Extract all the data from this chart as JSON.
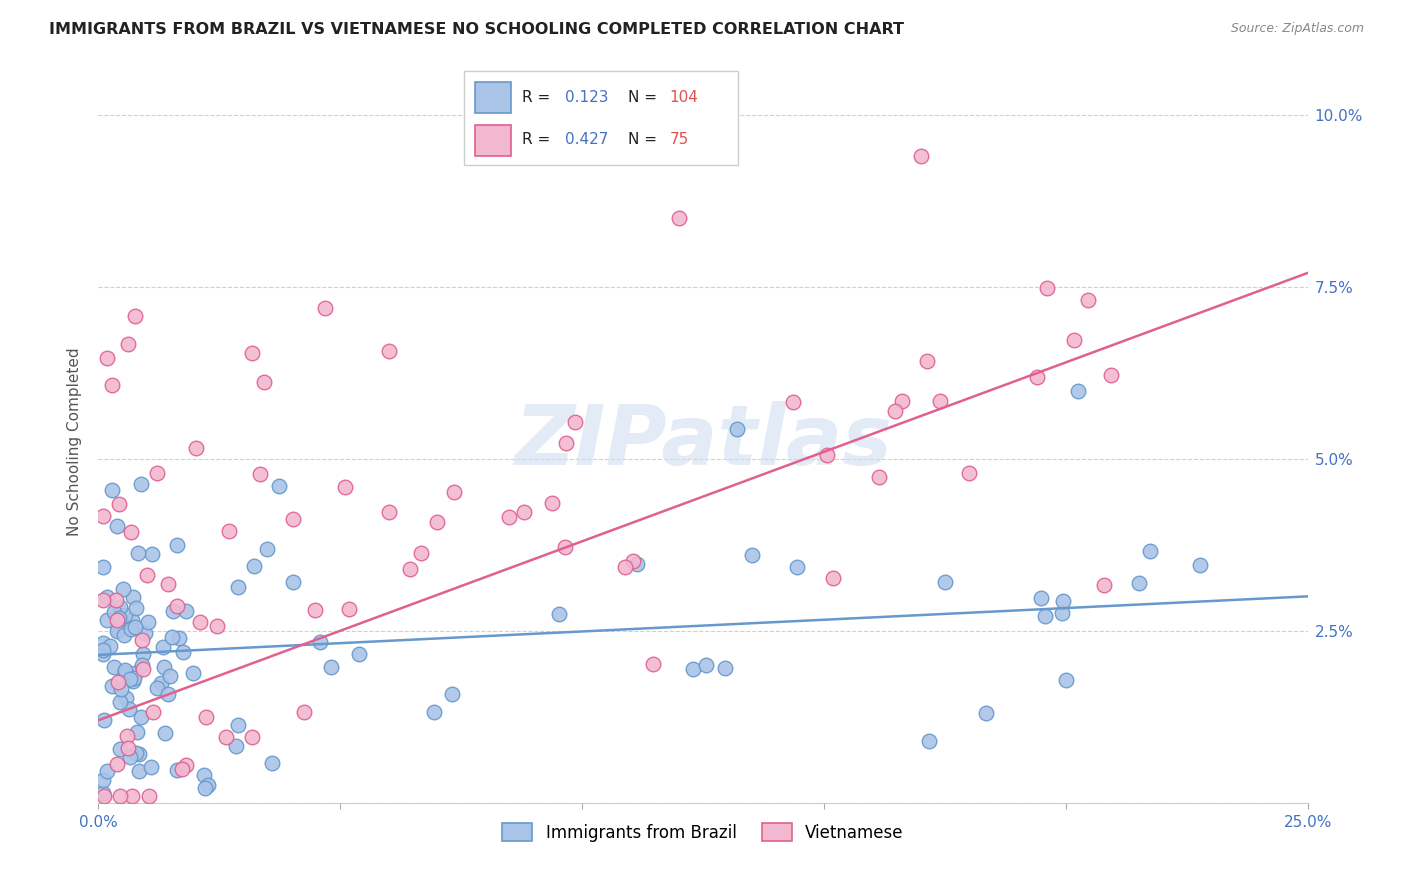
{
  "title": "IMMIGRANTS FROM BRAZIL VS VIETNAMESE NO SCHOOLING COMPLETED CORRELATION CHART",
  "source": "Source: ZipAtlas.com",
  "ylabel": "No Schooling Completed",
  "xlim": [
    0.0,
    0.25
  ],
  "ylim": [
    0.0,
    0.105
  ],
  "brazil_color": "#6699cc",
  "brazil_color_fill": "#aac4e8",
  "vietnamese_color": "#e06090",
  "vietnamese_color_fill": "#f2b8d0",
  "brazil_R": 0.123,
  "brazil_N": 104,
  "vietnamese_R": 0.427,
  "vietnamese_N": 75,
  "watermark": "ZIPatlas",
  "brazil_line_x": [
    0.0,
    0.25
  ],
  "brazil_line_y": [
    0.0215,
    0.03
  ],
  "vietnamese_line_x": [
    0.0,
    0.25
  ],
  "vietnamese_line_y": [
    0.012,
    0.077
  ],
  "ytick_vals": [
    0.0,
    0.025,
    0.05,
    0.075,
    0.1
  ],
  "ytick_labels": [
    "",
    "2.5%",
    "5.0%",
    "7.5%",
    "10.0%"
  ],
  "xtick_vals": [
    0.0,
    0.25
  ],
  "xtick_labels": [
    "0.0%",
    "25.0%"
  ]
}
